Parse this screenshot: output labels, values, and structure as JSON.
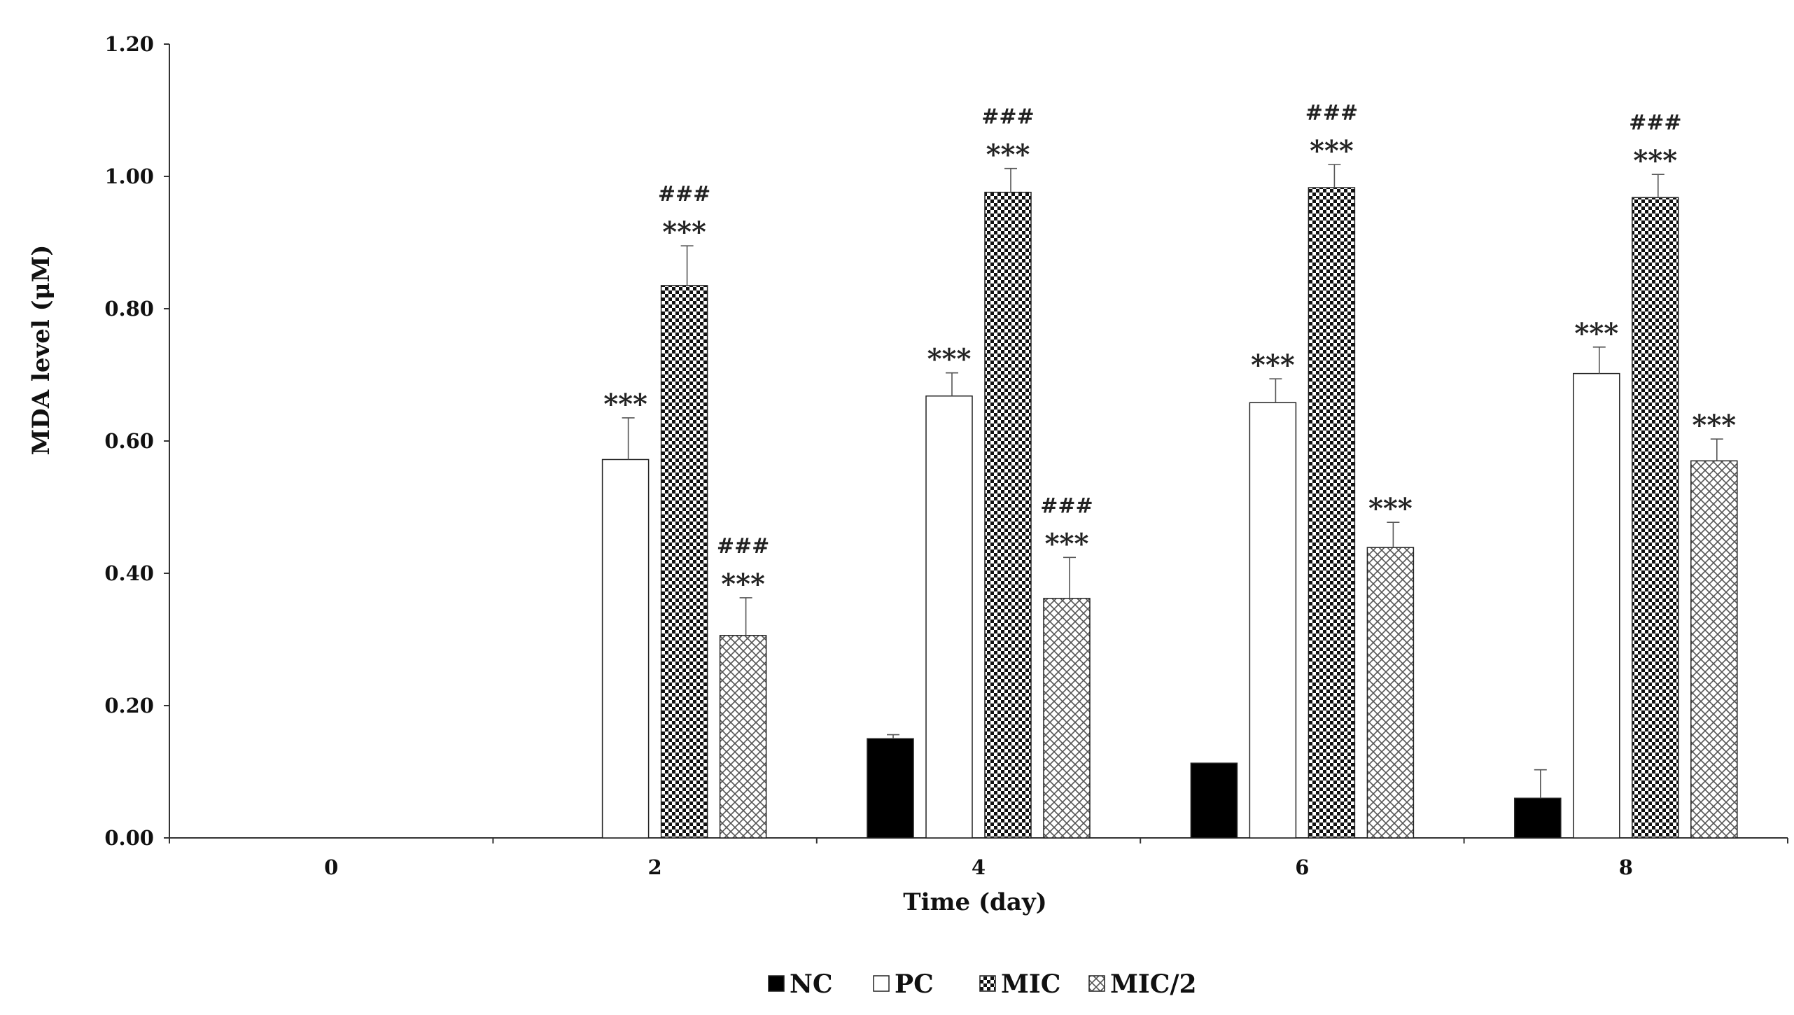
{
  "chart_data": {
    "type": "bar",
    "title": "",
    "xlabel": "Time (day)",
    "ylabel": "MDA level (μM)",
    "ylim": [
      0,
      1.2
    ],
    "yticks": [
      "0.00",
      "0.20",
      "0.40",
      "0.60",
      "0.80",
      "1.00",
      "1.20"
    ],
    "categories": [
      "0",
      "2",
      "4",
      "6",
      "8"
    ],
    "grid": false,
    "legend_position": "bottom",
    "series": [
      {
        "name": "NC",
        "color": "#000000",
        "pattern": "solid",
        "values": [
          0,
          0,
          0.15,
          0.113,
          0.06
        ],
        "errors": [
          0,
          0,
          0.006,
          0,
          0.043
        ]
      },
      {
        "name": "PC",
        "color": "#ffffff",
        "pattern": "open",
        "values": [
          0,
          0.572,
          0.668,
          0.658,
          0.702
        ],
        "errors": [
          0,
          0.063,
          0.035,
          0.036,
          0.04
        ]
      },
      {
        "name": "MIC",
        "color": "#1a1a1a",
        "pattern": "dense-check",
        "values": [
          0,
          0.835,
          0.976,
          0.983,
          0.968
        ],
        "errors": [
          0,
          0.06,
          0.036,
          0.035,
          0.035
        ]
      },
      {
        "name": "MIC/2",
        "color": "#555555",
        "pattern": "light-check",
        "values": [
          0,
          0.306,
          0.362,
          0.439,
          0.57
        ],
        "errors": [
          0,
          0.057,
          0.062,
          0.038,
          0.033
        ]
      }
    ],
    "annotations": [
      {
        "category": "2",
        "series": "PC",
        "labels": [
          "***"
        ]
      },
      {
        "category": "2",
        "series": "MIC",
        "labels": [
          "***",
          "###"
        ]
      },
      {
        "category": "2",
        "series": "MIC/2",
        "labels": [
          "***",
          "###"
        ]
      },
      {
        "category": "4",
        "series": "PC",
        "labels": [
          "***"
        ]
      },
      {
        "category": "4",
        "series": "MIC",
        "labels": [
          "***",
          "###"
        ]
      },
      {
        "category": "4",
        "series": "MIC/2",
        "labels": [
          "***",
          "###"
        ]
      },
      {
        "category": "6",
        "series": "PC",
        "labels": [
          "***"
        ]
      },
      {
        "category": "6",
        "series": "MIC",
        "labels": [
          "***",
          "###"
        ]
      },
      {
        "category": "6",
        "series": "MIC/2",
        "labels": [
          "***"
        ]
      },
      {
        "category": "8",
        "series": "PC",
        "labels": [
          "***"
        ]
      },
      {
        "category": "8",
        "series": "MIC",
        "labels": [
          "***",
          "###"
        ]
      },
      {
        "category": "8",
        "series": "MIC/2",
        "labels": [
          "***"
        ]
      }
    ]
  }
}
